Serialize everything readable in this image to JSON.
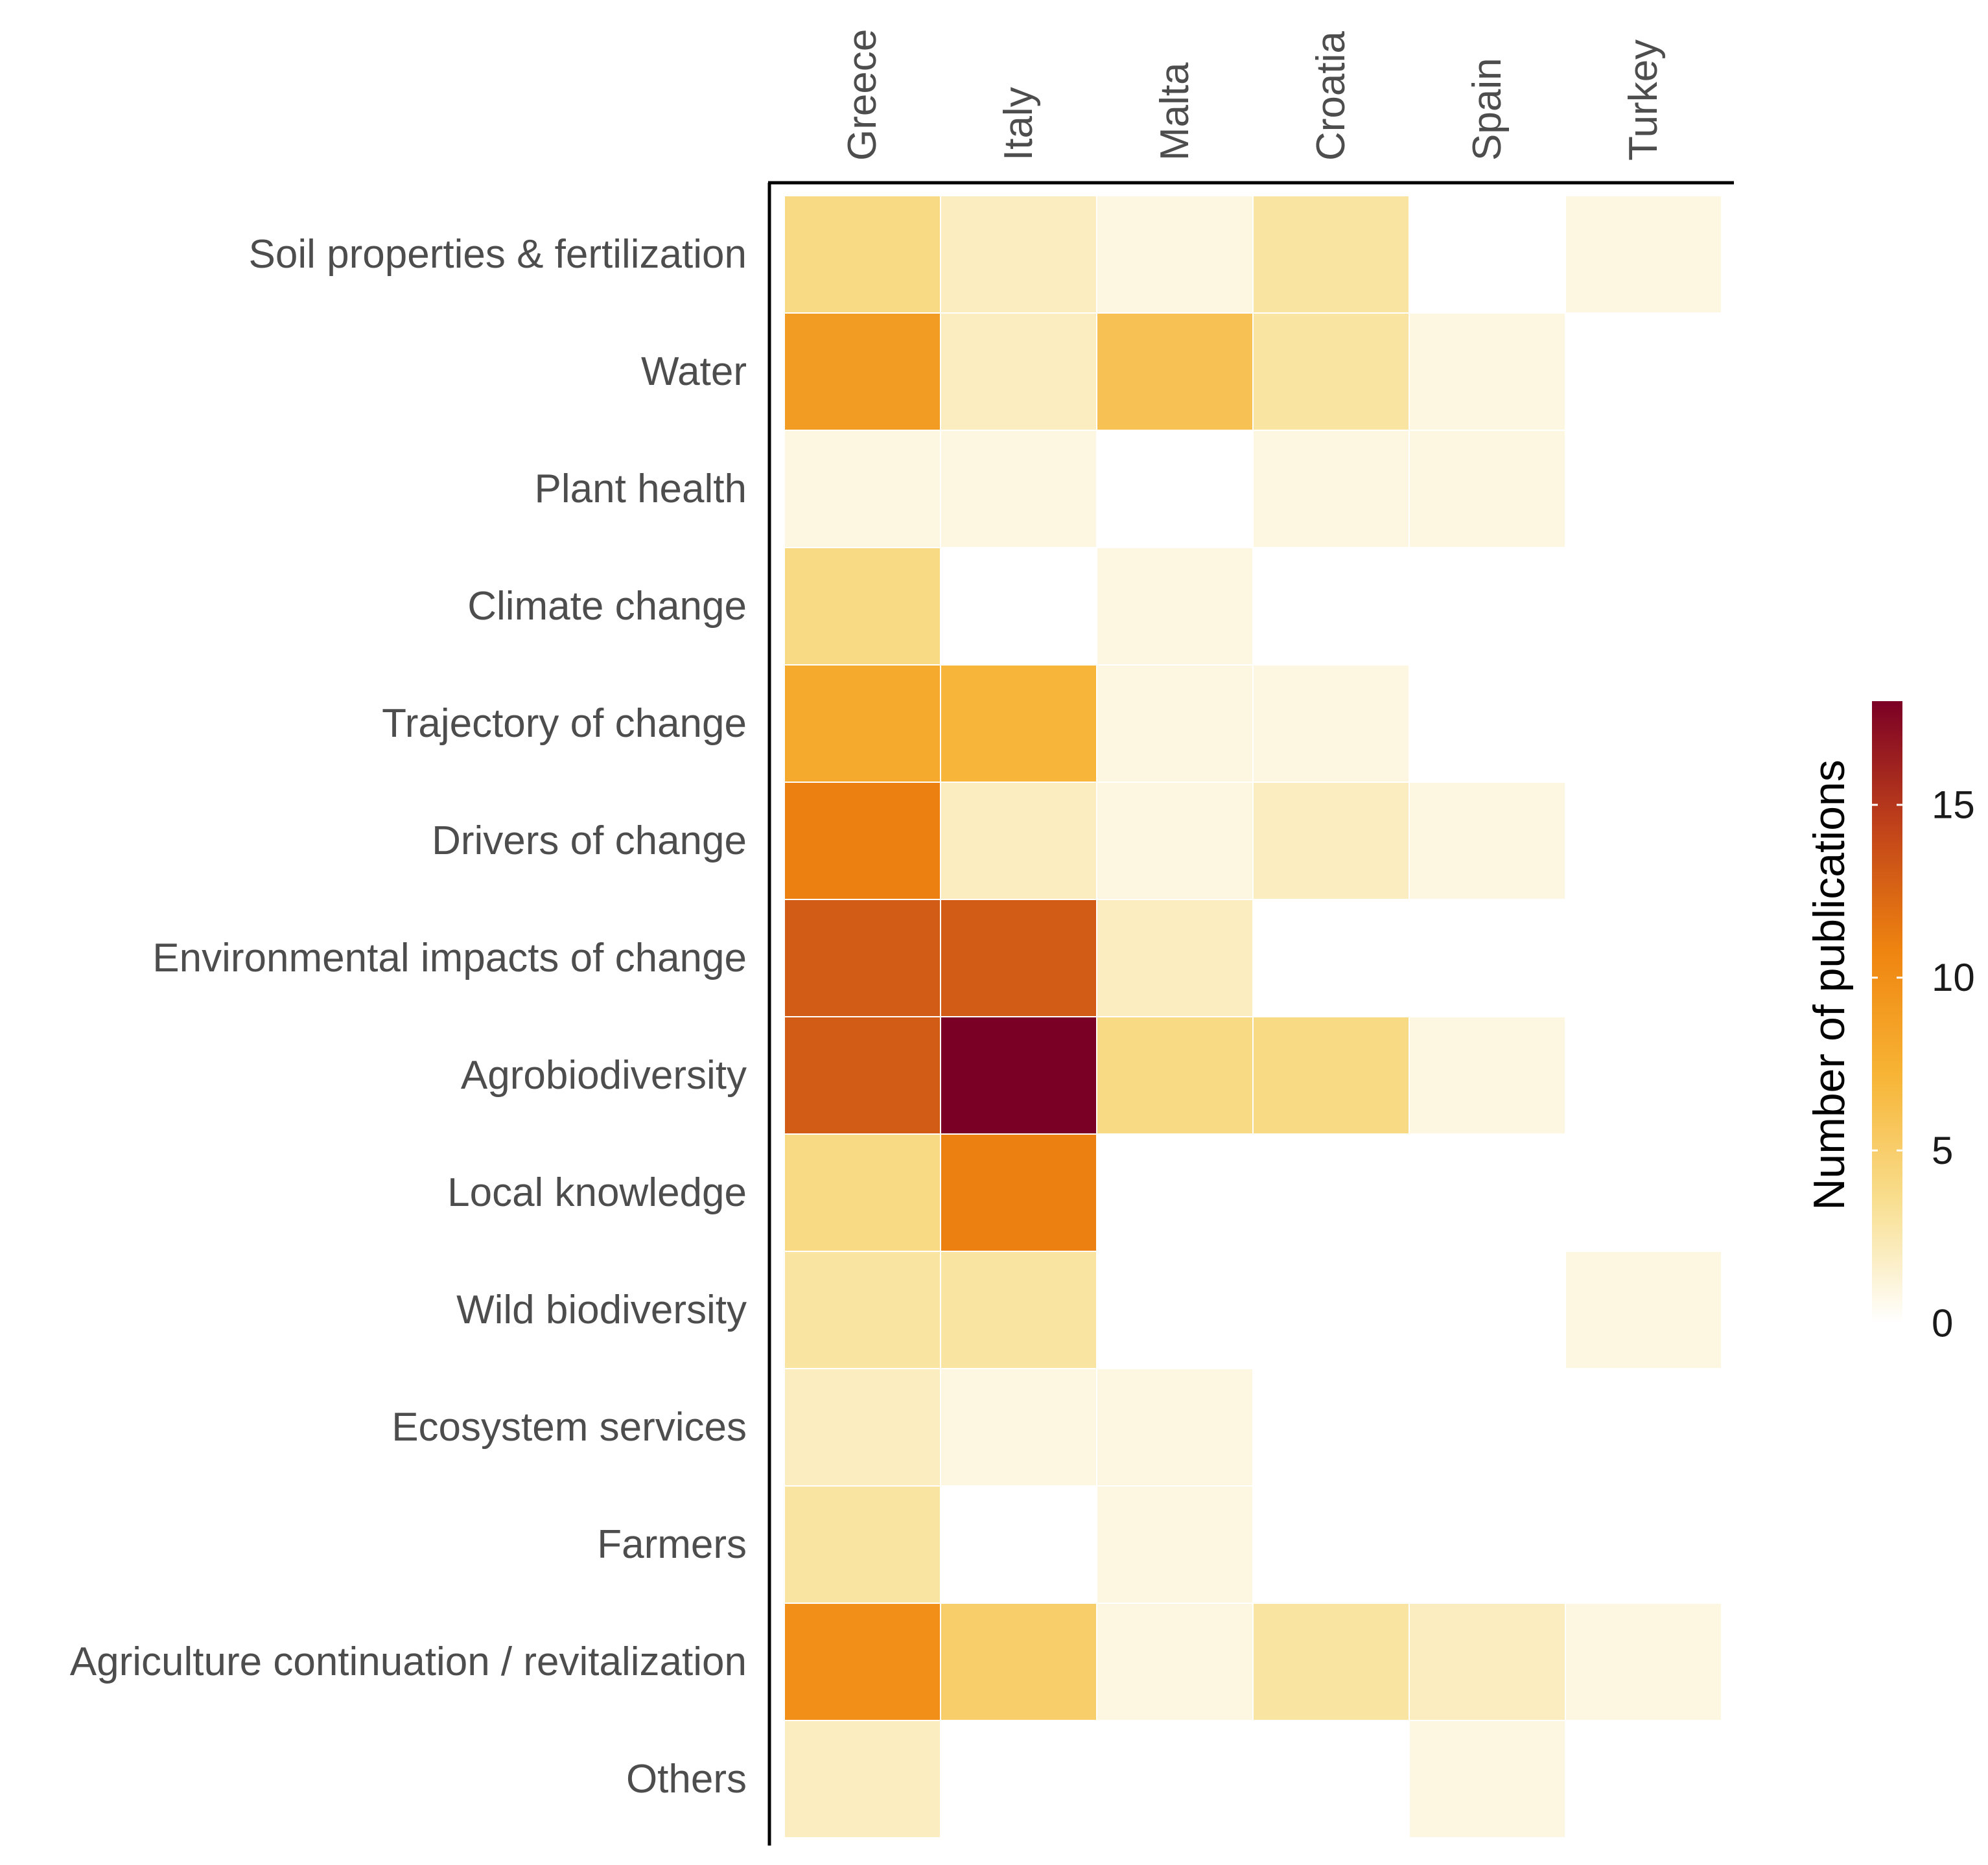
{
  "chart_data": {
    "type": "heatmap",
    "x_categories": [
      "Greece",
      "Italy",
      "Malta",
      "Croatia",
      "Spain",
      "Turkey"
    ],
    "y_categories": [
      "Soil properties & fertilization",
      "Water",
      "Plant health",
      "Climate change",
      "Trajectory of change",
      "Drivers of change",
      "Environmental impacts of change",
      "Agrobiodiversity",
      "Local knowledge",
      "Wild biodiversity",
      "Ecosystem services",
      "Farmers",
      "Agriculture continuation / revitalization",
      "Others"
    ],
    "values": [
      [
        4,
        2,
        1,
        3,
        null,
        1
      ],
      [
        9,
        2,
        6,
        3,
        1,
        null
      ],
      [
        1,
        1,
        null,
        1,
        1,
        null
      ],
      [
        4,
        null,
        1,
        null,
        null,
        null
      ],
      [
        8,
        7,
        1,
        1,
        null,
        null
      ],
      [
        11,
        2,
        1,
        2,
        1,
        null
      ],
      [
        13,
        13,
        2,
        null,
        null,
        null
      ],
      [
        13,
        18,
        4,
        4,
        1,
        null
      ],
      [
        4,
        11,
        null,
        null,
        null,
        null
      ],
      [
        3,
        3,
        null,
        null,
        null,
        1
      ],
      [
        2,
        1,
        1,
        null,
        null,
        null
      ],
      [
        3,
        null,
        1,
        null,
        null,
        null
      ],
      [
        10,
        5,
        1,
        3,
        2,
        1
      ],
      [
        2,
        null,
        null,
        null,
        1,
        null
      ]
    ],
    "colorbar": {
      "label": "Number of publications",
      "range": [
        0,
        18
      ],
      "ticks": [
        0,
        5,
        10,
        15
      ],
      "tick_labels": [
        "0",
        "5",
        "10",
        "15"
      ],
      "stops": [
        "#ffffff",
        "#f8de8e",
        "#f7b435",
        "#ef8410",
        "#c0421a",
        "#7b0025"
      ]
    }
  }
}
